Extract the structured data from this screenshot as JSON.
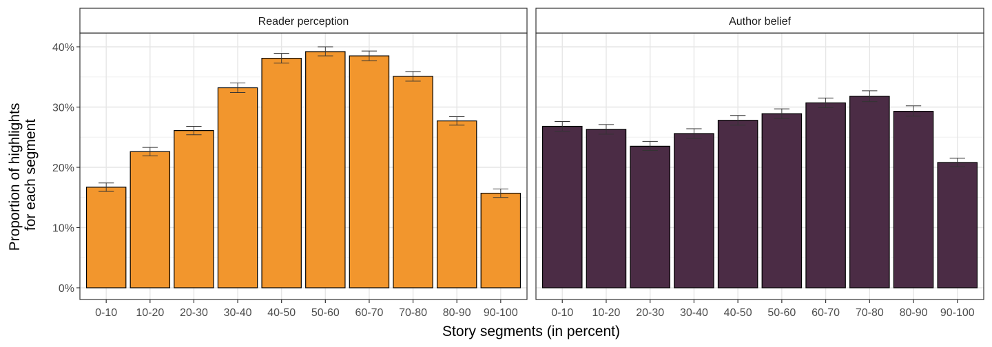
{
  "chart_data": {
    "type": "bar",
    "xlabel": "Story segments (in percent)",
    "ylabel_lines": [
      "Proportion of highlights",
      "for each segment"
    ],
    "ylim": [
      0,
      0.42
    ],
    "y_ticks": [
      0,
      0.1,
      0.2,
      0.3,
      0.4
    ],
    "y_tick_labels": [
      "0%",
      "10%",
      "20%",
      "30%",
      "40%"
    ],
    "grid": true,
    "categories": [
      "0-10",
      "10-20",
      "20-30",
      "30-40",
      "40-50",
      "50-60",
      "60-70",
      "70-80",
      "80-90",
      "90-100"
    ],
    "panels": [
      {
        "name": "Reader perception",
        "color": "#F2962D",
        "values": [
          0.167,
          0.226,
          0.261,
          0.332,
          0.381,
          0.392,
          0.385,
          0.351,
          0.277,
          0.157
        ],
        "error_low": [
          0.16,
          0.219,
          0.254,
          0.324,
          0.373,
          0.385,
          0.377,
          0.343,
          0.27,
          0.15
        ],
        "error_high": [
          0.174,
          0.233,
          0.268,
          0.34,
          0.389,
          0.4,
          0.393,
          0.359,
          0.284,
          0.164
        ]
      },
      {
        "name": "Author belief",
        "color": "#4B2C45",
        "values": [
          0.268,
          0.263,
          0.235,
          0.256,
          0.278,
          0.289,
          0.307,
          0.318,
          0.293,
          0.208
        ],
        "error_low": [
          0.26,
          0.255,
          0.228,
          0.248,
          0.27,
          0.281,
          0.299,
          0.309,
          0.285,
          0.201
        ],
        "error_high": [
          0.276,
          0.271,
          0.243,
          0.264,
          0.286,
          0.297,
          0.315,
          0.327,
          0.302,
          0.215
        ]
      }
    ]
  }
}
